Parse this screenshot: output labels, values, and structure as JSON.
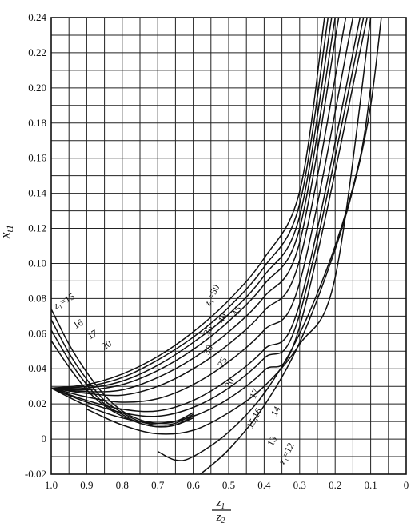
{
  "chart_data": {
    "type": "line",
    "xlabel": {
      "num": "z",
      "num_sub": "1",
      "den": "z",
      "den_sub": "2"
    },
    "ylabel": {
      "base": "x",
      "sub": "t1"
    },
    "xlim": [
      1.0,
      0.0
    ],
    "ylim": [
      -0.02,
      0.24
    ],
    "x_ticks": [
      "1.0",
      "0.9",
      "0.8",
      "0.7",
      "0.6",
      "0.5",
      "0.4",
      "0.3",
      "0.2",
      "0.1",
      "0"
    ],
    "y_ticks": [
      "-0.02",
      "0",
      "0.02",
      "0.04",
      "0.06",
      "0.08",
      "0.10",
      "0.12",
      "0.14",
      "0.16",
      "0.18",
      "0.20",
      "0.22",
      "0.24"
    ],
    "grid": true,
    "family_a": [
      {
        "name": "z1=50",
        "x": [
          1.0,
          0.9,
          0.8,
          0.7,
          0.6,
          0.5,
          0.4,
          0.3,
          0.23
        ],
        "y": [
          0.029,
          0.031,
          0.037,
          0.047,
          0.061,
          0.079,
          0.103,
          0.141,
          0.24
        ]
      },
      {
        "name": "45",
        "x": [
          1.0,
          0.9,
          0.8,
          0.7,
          0.6,
          0.5,
          0.4,
          0.3,
          0.22
        ],
        "y": [
          0.029,
          0.03,
          0.035,
          0.045,
          0.058,
          0.075,
          0.098,
          0.134,
          0.24
        ]
      },
      {
        "name": "40",
        "x": [
          1.0,
          0.9,
          0.8,
          0.7,
          0.6,
          0.5,
          0.4,
          0.3,
          0.21
        ],
        "y": [
          0.029,
          0.029,
          0.033,
          0.042,
          0.055,
          0.071,
          0.093,
          0.127,
          0.24
        ]
      },
      {
        "name": "35",
        "x": [
          1.0,
          0.9,
          0.8,
          0.7,
          0.6,
          0.5,
          0.4,
          0.3,
          0.2
        ],
        "y": [
          0.029,
          0.028,
          0.031,
          0.039,
          0.051,
          0.067,
          0.088,
          0.12,
          0.24
        ]
      },
      {
        "name": "30",
        "x": [
          1.0,
          0.9,
          0.8,
          0.7,
          0.6,
          0.5,
          0.4,
          0.3,
          0.19
        ],
        "y": [
          0.029,
          0.027,
          0.028,
          0.035,
          0.046,
          0.061,
          0.081,
          0.112,
          0.24
        ]
      },
      {
        "name": "25",
        "x": [
          1.0,
          0.9,
          0.8,
          0.7,
          0.6,
          0.5,
          0.4,
          0.3,
          0.17
        ],
        "y": [
          0.029,
          0.026,
          0.025,
          0.03,
          0.04,
          0.054,
          0.073,
          0.102,
          0.24
        ]
      },
      {
        "name": "20",
        "x": [
          1.0,
          0.9,
          0.8,
          0.7,
          0.6,
          0.5,
          0.4,
          0.3,
          0.15
        ],
        "y": [
          0.029,
          0.024,
          0.021,
          0.023,
          0.031,
          0.044,
          0.062,
          0.089,
          0.24
        ]
      },
      {
        "name": "17",
        "x": [
          1.0,
          0.9,
          0.8,
          0.7,
          0.6,
          0.5,
          0.4,
          0.3,
          0.13
        ],
        "y": [
          0.029,
          0.022,
          0.017,
          0.016,
          0.022,
          0.034,
          0.051,
          0.077,
          0.24
        ]
      },
      {
        "name": "16",
        "x": [
          1.0,
          0.9,
          0.8,
          0.7,
          0.6,
          0.5,
          0.4,
          0.3,
          0.12
        ],
        "y": [
          0.029,
          0.021,
          0.015,
          0.013,
          0.018,
          0.029,
          0.046,
          0.071,
          0.24
        ]
      },
      {
        "name": "15",
        "x": [
          1.0,
          0.9,
          0.8,
          0.7,
          0.6,
          0.5,
          0.4,
          0.3,
          0.11
        ],
        "y": [
          0.029,
          0.019,
          0.012,
          0.009,
          0.013,
          0.023,
          0.039,
          0.064,
          0.24
        ]
      },
      {
        "name": "14",
        "x": [
          0.9,
          0.8,
          0.7,
          0.6,
          0.5,
          0.4,
          0.3,
          0.2,
          0.1
        ],
        "y": [
          0.017,
          0.008,
          0.003,
          0.005,
          0.015,
          0.03,
          0.054,
          0.092,
          0.24
        ]
      }
    ],
    "family_b": [
      {
        "name": "z1=15",
        "x": [
          1.0,
          0.95,
          0.9,
          0.85,
          0.8,
          0.75,
          0.7,
          0.65,
          0.6
        ],
        "y": [
          0.074,
          0.054,
          0.038,
          0.025,
          0.016,
          0.011,
          0.009,
          0.01,
          0.015
        ]
      },
      {
        "name": "16",
        "x": [
          1.0,
          0.95,
          0.9,
          0.85,
          0.8,
          0.75,
          0.7,
          0.65,
          0.6
        ],
        "y": [
          0.068,
          0.049,
          0.034,
          0.022,
          0.015,
          0.01,
          0.008,
          0.009,
          0.014
        ]
      },
      {
        "name": "17",
        "x": [
          1.0,
          0.95,
          0.9,
          0.85,
          0.8,
          0.75,
          0.7,
          0.65,
          0.6
        ],
        "y": [
          0.062,
          0.045,
          0.031,
          0.02,
          0.014,
          0.009,
          0.007,
          0.008,
          0.013
        ]
      },
      {
        "name": "20",
        "x": [
          1.0,
          0.95,
          0.9,
          0.85,
          0.8,
          0.75,
          0.7,
          0.65,
          0.6
        ],
        "y": [
          0.056,
          0.041,
          0.028,
          0.019,
          0.013,
          0.009,
          0.007,
          0.008,
          0.012
        ]
      }
    ],
    "low_curves": [
      {
        "name": "13",
        "x": [
          0.7,
          0.65,
          0.6,
          0.5,
          0.4,
          0.3,
          0.2,
          0.13,
          0.1
        ],
        "y": [
          -0.007,
          -0.012,
          -0.01,
          0.004,
          0.026,
          0.06,
          0.11,
          0.16,
          0.2
        ]
      },
      {
        "name": "z1=12",
        "x": [
          0.58,
          0.5,
          0.4,
          0.3,
          0.2,
          0.14,
          0.1,
          0.07
        ],
        "y": [
          -0.02,
          -0.006,
          0.019,
          0.055,
          0.108,
          0.15,
          0.19,
          0.24
        ]
      }
    ],
    "curve_labels": [
      {
        "text": "z₁=50",
        "x": 0.54,
        "y": 0.081,
        "rot": -62
      },
      {
        "text": "40",
        "x": 0.51,
        "y": 0.068,
        "rot": -62
      },
      {
        "text": "45",
        "x": 0.47,
        "y": 0.072,
        "rot": -62
      },
      {
        "text": "35",
        "x": 0.55,
        "y": 0.061,
        "rot": -62
      },
      {
        "text": "30",
        "x": 0.55,
        "y": 0.05,
        "rot": -62
      },
      {
        "text": "25",
        "x": 0.51,
        "y": 0.043,
        "rot": -62
      },
      {
        "text": "20",
        "x": 0.49,
        "y": 0.031,
        "rot": -62
      },
      {
        "text": "17",
        "x": 0.42,
        "y": 0.025,
        "rot": -62
      },
      {
        "text": "15,16",
        "x": 0.42,
        "y": 0.011,
        "rot": -62
      },
      {
        "text": "14",
        "x": 0.36,
        "y": 0.015,
        "rot": -62
      },
      {
        "text": "13",
        "x": 0.37,
        "y": -0.002,
        "rot": -62
      },
      {
        "text": "z₁=12",
        "x": 0.33,
        "y": -0.009,
        "rot": -62
      },
      {
        "text": "z₁=15",
        "x": 0.96,
        "y": 0.077,
        "rot": -30
      },
      {
        "text": "16",
        "x": 0.92,
        "y": 0.064,
        "rot": -30
      },
      {
        "text": "17",
        "x": 0.88,
        "y": 0.058,
        "rot": -30
      },
      {
        "text": "20",
        "x": 0.84,
        "y": 0.052,
        "rot": -30
      }
    ]
  }
}
